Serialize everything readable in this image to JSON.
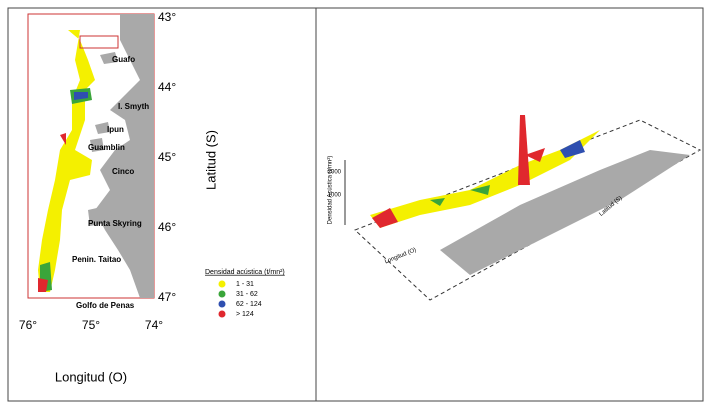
{
  "left_map": {
    "lat_ticks": [
      "43°",
      "44°",
      "45°",
      "46°",
      "47°"
    ],
    "lon_ticks": [
      "76°",
      "75°",
      "74°"
    ],
    "x_axis_label": "Longitud (O)",
    "y_axis_label": "Latitud (S)",
    "places": [
      "Guafo",
      "I. Smyth",
      "Ipun",
      "Guamblin",
      "Cinco",
      "Punta Skyring",
      "Penin. Taitao",
      "Golfo de Penas"
    ]
  },
  "legend": {
    "title": "Densidad acústica (t/mn²)",
    "items": [
      {
        "label": "1 - 31",
        "color": "#f4f000"
      },
      {
        "label": "31 - 62",
        "color": "#3aa53a"
      },
      {
        "label": "62 - 124",
        "color": "#2f4fb0"
      },
      {
        "label": "> 124",
        "color": "#e0282e"
      }
    ]
  },
  "right_map": {
    "z_axis_label": "Densidad Acústica (t/mn²)",
    "z_ticks": [
      "2000",
      "1000"
    ],
    "x_axis_label": "Longitud (O)",
    "y_axis_label": "Latitud (S)"
  }
}
